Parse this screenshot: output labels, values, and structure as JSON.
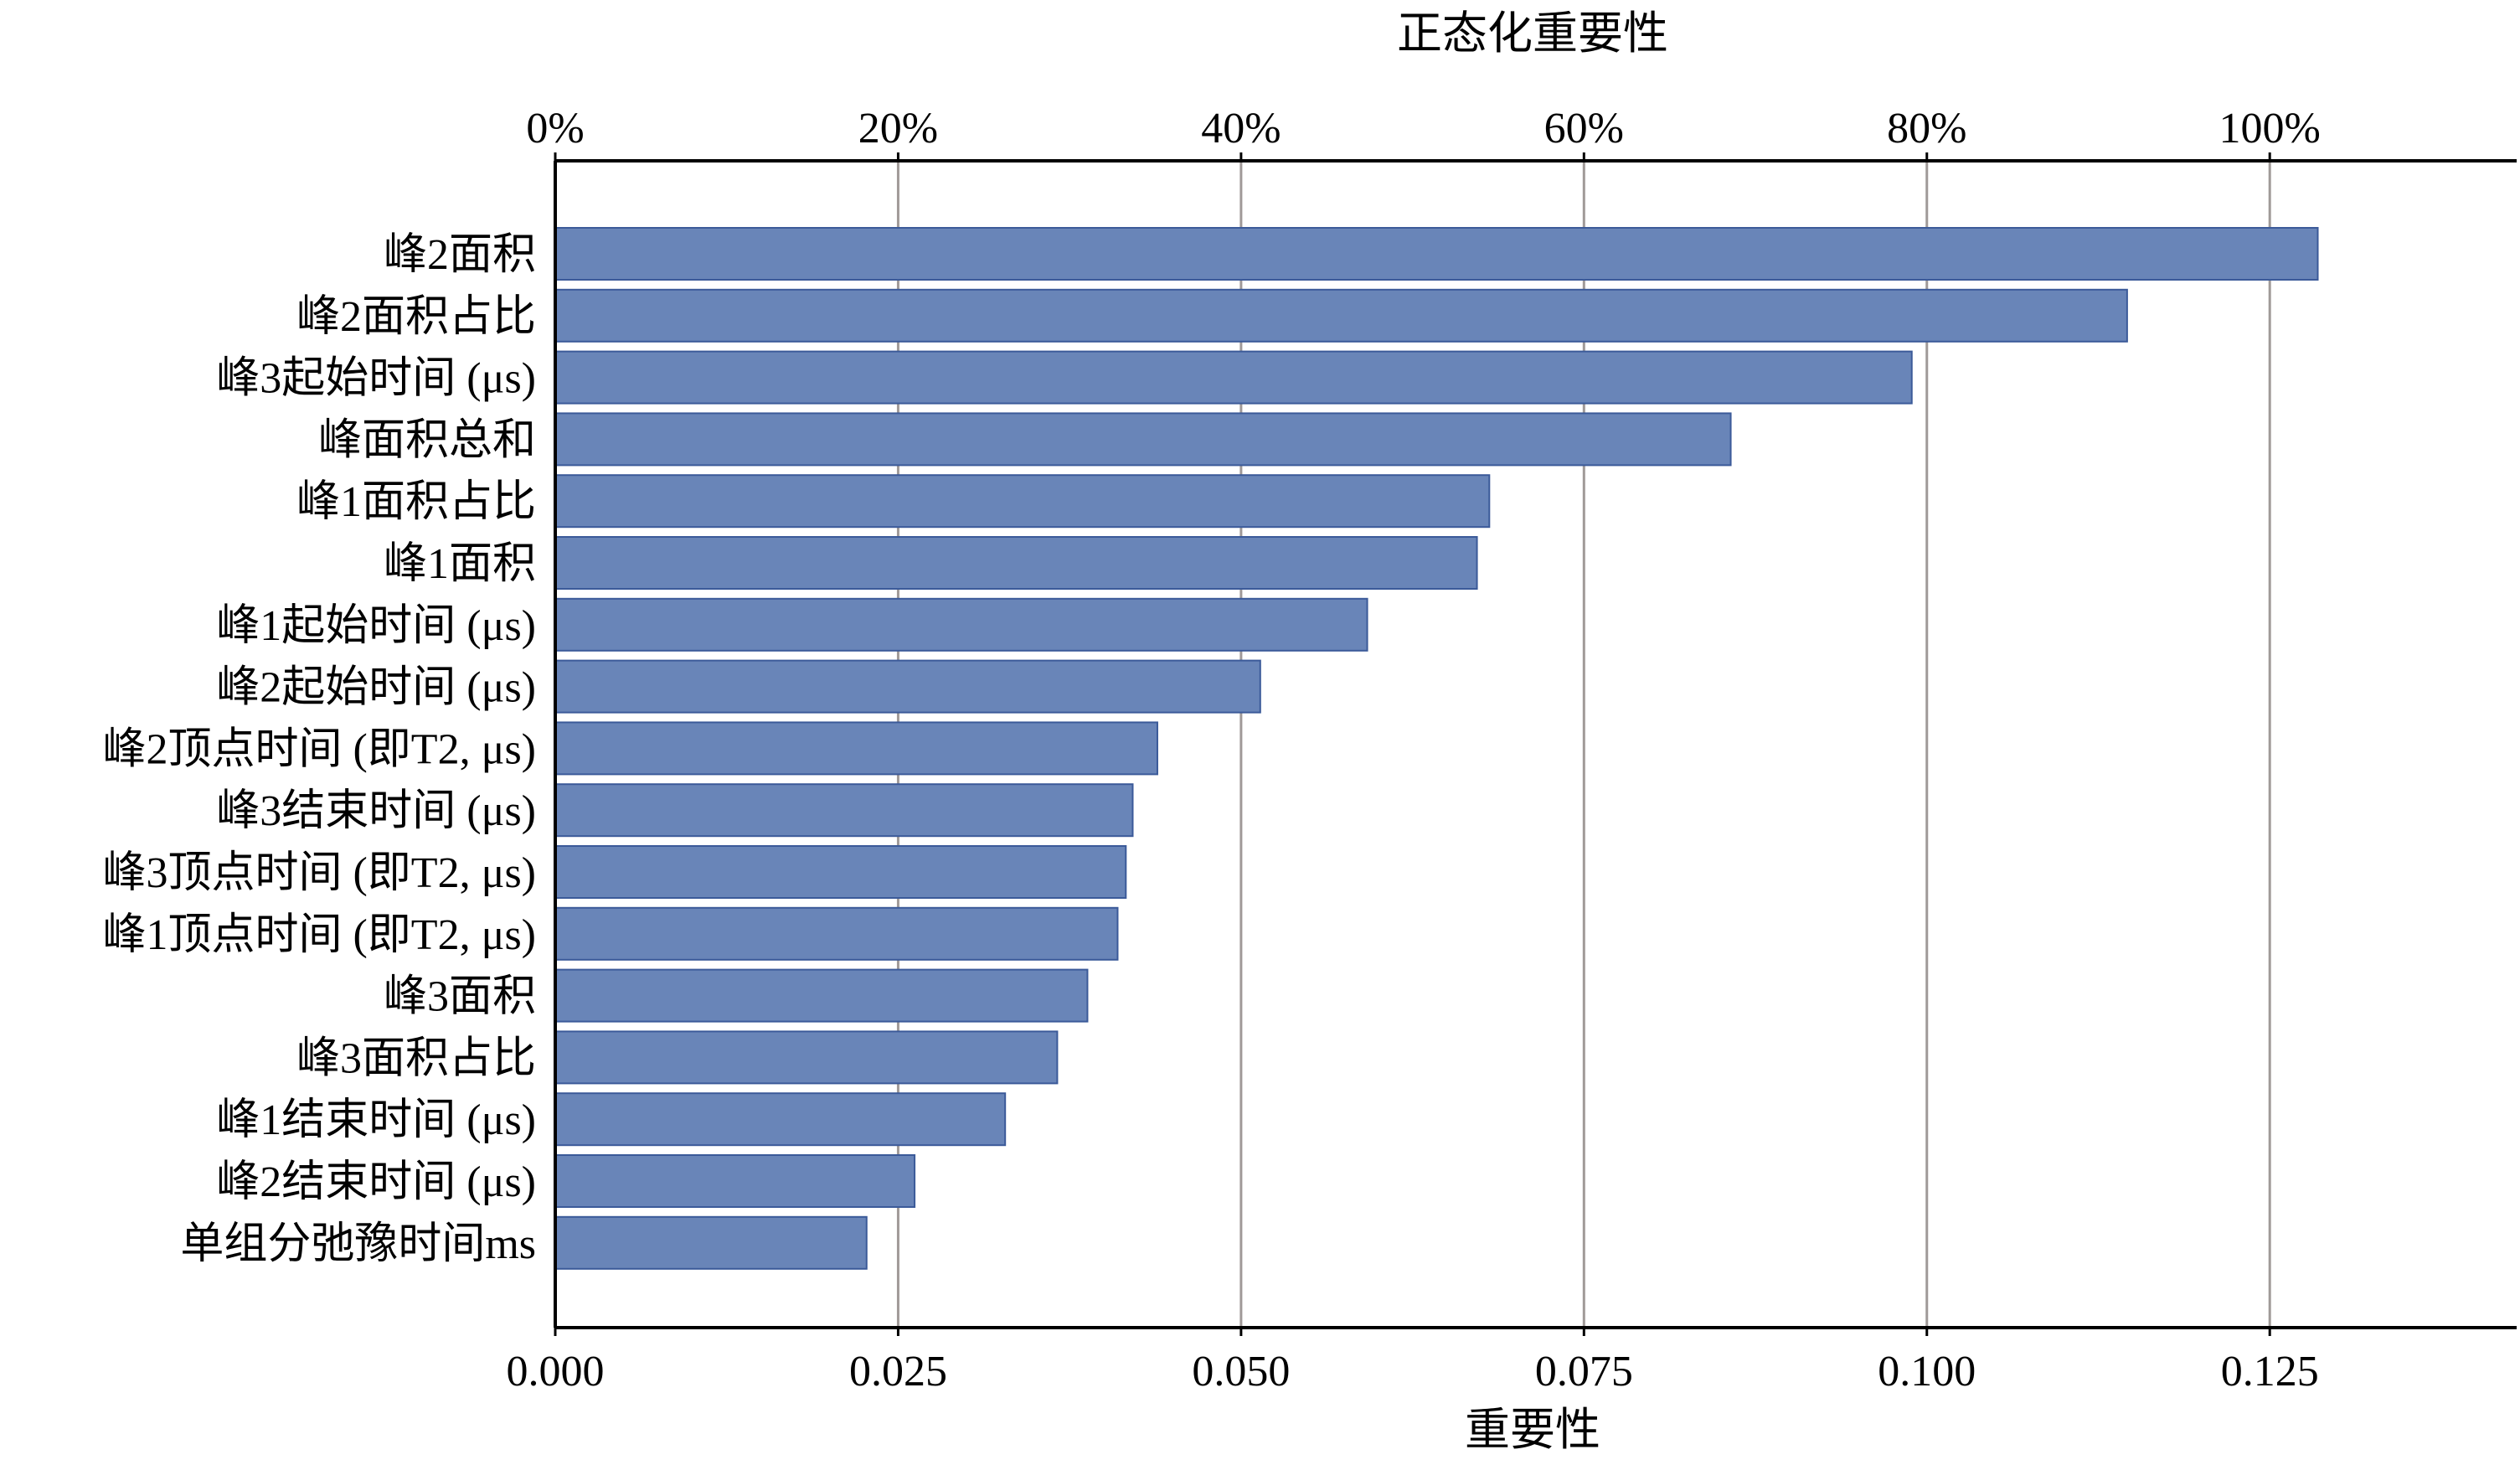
{
  "chart_data": {
    "type": "bar",
    "orientation": "horizontal",
    "xlabel_top": "正态化重要性",
    "xlabel_bottom": "重要性",
    "categories": [
      "峰2面积",
      "峰2面积占比",
      "峰3起始时间 (μs)",
      "峰面积总和",
      "峰1面积占比",
      "峰1面积",
      "峰1起始时间 (μs)",
      "峰2起始时间 (μs)",
      "峰2顶点时间 (即T2, μs)",
      "峰3结束时间 (μs)",
      "峰3顶点时间 (即T2, μs)",
      "峰1顶点时间 (即T2, μs)",
      "峰3面积",
      "峰3面积占比",
      "峰1结束时间 (μs)",
      "峰2结束时间 (μs)",
      "单组分弛豫时间ms"
    ],
    "values": [
      0.1285,
      0.1146,
      0.0989,
      0.0857,
      0.0681,
      0.0672,
      0.0592,
      0.0514,
      0.0439,
      0.0421,
      0.0416,
      0.041,
      0.0388,
      0.0366,
      0.0328,
      0.0262,
      0.0227
    ],
    "xlim": [
      0,
      0.143
    ],
    "bottom_ticks": [
      "0.000",
      "0.025",
      "0.050",
      "0.075",
      "0.100",
      "0.125"
    ],
    "bottom_tick_values": [
      0,
      0.025,
      0.05,
      0.075,
      0.1,
      0.125
    ],
    "top_ticks": [
      "0%",
      "20%",
      "40%",
      "60%",
      "80%",
      "100%"
    ],
    "grid": "vertical",
    "legend": "none",
    "colors": {
      "bar_fill": "#6985b8",
      "bar_stroke": "#3b5a99",
      "grid": "#a09a98",
      "axis": "#000000"
    }
  }
}
